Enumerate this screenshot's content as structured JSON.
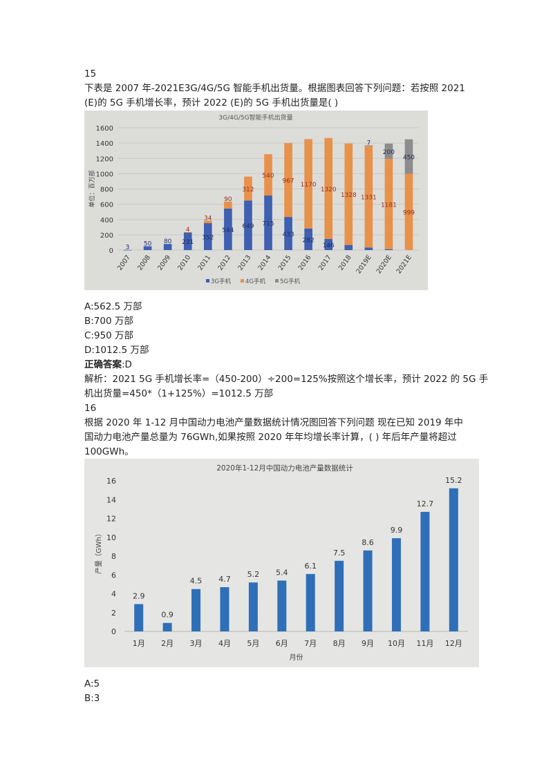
{
  "q15": {
    "number": "15",
    "question_line1": "下表是 2007 年-2021E3G/4G/5G 智能手机出货量。根据图表回答下列问题：若按照 2021",
    "question_line2": "(E)的 5G 手机增长率，预计 2022 (E)的 5G 手机出货量是( )",
    "options": [
      "A:562.5 万部",
      "B:700 万部",
      "C:950 万部",
      "D:1012.5 万部"
    ],
    "answer_label": "正确答案",
    "answer_value": ":D",
    "analysis_line1": "解析：2021 5G 手机增长率=（450-200）÷200=125%按照这个增长率，预计 2022 的 5G 手",
    "analysis_line2": "机出货量=450*（1+125%）=1012.5 万部"
  },
  "q16": {
    "number": "16",
    "question_line1": "根据 2020 年 1-12 月中国动力电池产量数据统计情况图回答下列问题 现在已知 2019 年中",
    "question_line2": "国动力电池产量总量为 76GWh,如果按照 2020 年年均增长率计算，( ) 年后年产量将超过",
    "question_line3": "100GWh。",
    "options": [
      "A:5",
      "B:3"
    ]
  },
  "chart_data": [
    {
      "type": "bar",
      "title": "3G/4G/5G智能手机出货量",
      "ylabel": "单位：百万部",
      "ylim": [
        0,
        1600
      ],
      "yticks": [
        0,
        200,
        400,
        600,
        800,
        1000,
        1200,
        1400,
        1600
      ],
      "stacked": true,
      "categories": [
        "2007",
        "2008",
        "2009",
        "2010",
        "2011",
        "2012",
        "2013",
        "2014",
        "2015",
        "2016",
        "2017",
        "2018",
        "2019E",
        "2020E",
        "2021E"
      ],
      "series": [
        {
          "name": "3G手机",
          "color": "#3f5fb0",
          "values": [
            3,
            50,
            80,
            231,
            352,
            544,
            649,
            715,
            433,
            282,
            146,
            67,
            33,
            12,
            0
          ]
        },
        {
          "name": "4G手机",
          "color": "#e8914a",
          "values": [
            0,
            0,
            0,
            4,
            34,
            90,
            312,
            540,
            967,
            1170,
            1320,
            1328,
            1331,
            1181,
            999
          ]
        },
        {
          "name": "5G手机",
          "color": "#8c8c8c",
          "values": [
            0,
            0,
            0,
            0,
            0,
            0,
            0,
            0,
            0,
            0,
            0,
            0,
            7,
            200,
            450
          ]
        }
      ],
      "legend_position": "bottom"
    },
    {
      "type": "bar",
      "title": "2020年1-12月中国动力电池产量数据统计",
      "xlabel": "月份",
      "ylabel": "产量（GWh）",
      "ylim": [
        0,
        16
      ],
      "yticks": [
        0,
        2,
        4,
        6,
        8,
        10,
        12,
        14,
        16
      ],
      "categories": [
        "1月",
        "2月",
        "3月",
        "4月",
        "5月",
        "6月",
        "7月",
        "8月",
        "9月",
        "10月",
        "11月",
        "12月"
      ],
      "values": [
        2.9,
        0.9,
        4.5,
        4.7,
        5.2,
        5.4,
        6.1,
        7.5,
        8.6,
        9.9,
        12.7,
        15.2
      ],
      "bar_color": "#2f6fb8"
    }
  ]
}
